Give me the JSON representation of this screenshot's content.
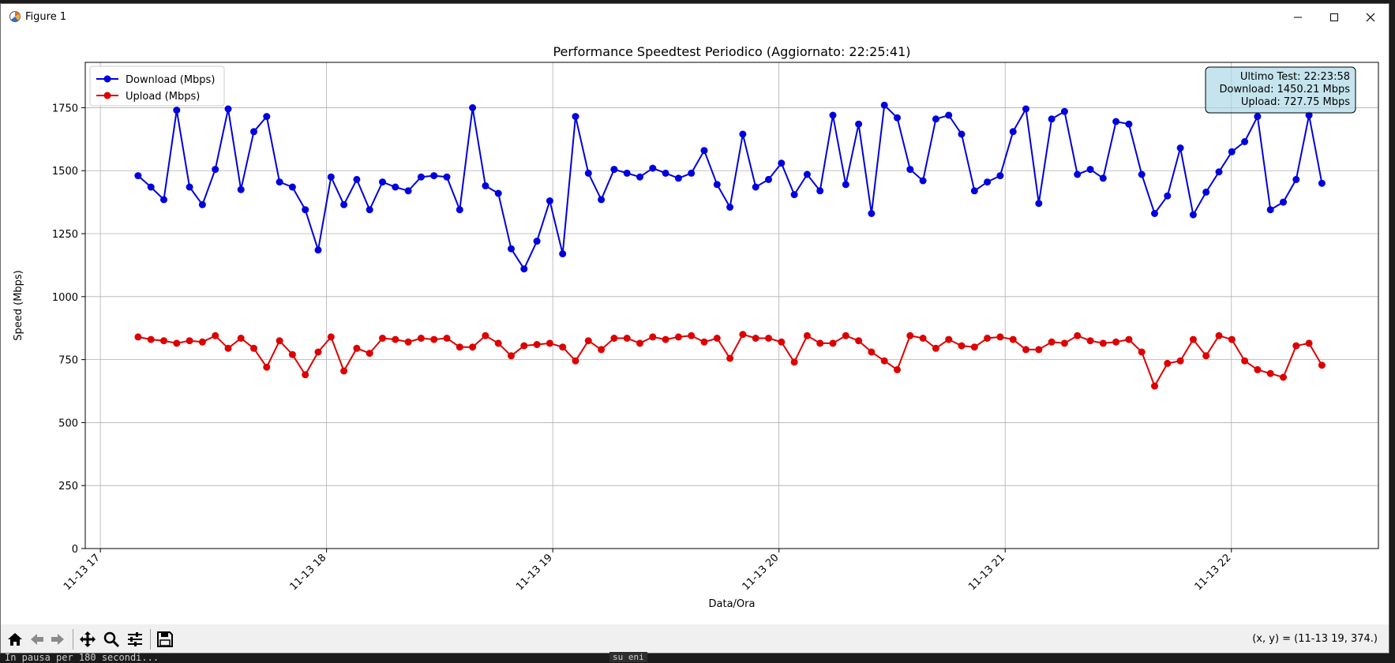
{
  "window": {
    "title": "Figure 1"
  },
  "chart_data": {
    "type": "line",
    "title": "Performance Speedtest Periodico (Aggiornato: 22:25:41)",
    "xlabel": "Data/Ora",
    "ylabel": "Speed (Mbps)",
    "ylim": [
      0,
      1930
    ],
    "yticks": [
      0,
      250,
      500,
      750,
      1000,
      1250,
      1500,
      1750
    ],
    "xlim": [
      "11-13 16:56",
      "11-13 22:39"
    ],
    "xticks": [
      "11-13 17",
      "11-13 18",
      "11-13 19",
      "11-13 20",
      "11-13 21",
      "11-13 22"
    ],
    "grid": true,
    "legend": "top-left",
    "x_start": "11-13 17:10",
    "x_end": "11-13 22:24",
    "series": [
      {
        "name": "Download (Mbps)",
        "color": "#0000dd",
        "values": [
          1480,
          1435,
          1385,
          1740,
          1435,
          1365,
          1505,
          1745,
          1425,
          1655,
          1715,
          1455,
          1435,
          1345,
          1185,
          1475,
          1365,
          1465,
          1345,
          1455,
          1435,
          1420,
          1475,
          1480,
          1475,
          1345,
          1750,
          1440,
          1410,
          1190,
          1110,
          1220,
          1380,
          1170,
          1715,
          1490,
          1385,
          1505,
          1490,
          1475,
          1510,
          1490,
          1470,
          1490,
          1580,
          1445,
          1355,
          1645,
          1435,
          1465,
          1530,
          1405,
          1485,
          1420,
          1720,
          1445,
          1685,
          1330,
          1760,
          1710,
          1505,
          1460,
          1705,
          1720,
          1645,
          1420,
          1455,
          1480,
          1655,
          1745,
          1370,
          1705,
          1735,
          1485,
          1505,
          1470,
          1695,
          1685,
          1485,
          1330,
          1400,
          1590,
          1325,
          1415,
          1495,
          1575,
          1615,
          1715,
          1345,
          1375,
          1465,
          1720,
          1450
        ]
      },
      {
        "name": "Upload (Mbps)",
        "color": "#dd0000",
        "values": [
          840,
          830,
          825,
          815,
          825,
          820,
          845,
          795,
          835,
          795,
          720,
          825,
          770,
          690,
          780,
          840,
          705,
          795,
          775,
          835,
          830,
          820,
          835,
          830,
          835,
          800,
          800,
          845,
          815,
          765,
          805,
          810,
          815,
          800,
          745,
          825,
          790,
          835,
          835,
          815,
          840,
          830,
          840,
          845,
          820,
          835,
          755,
          850,
          835,
          835,
          820,
          740,
          845,
          815,
          815,
          845,
          825,
          780,
          745,
          710,
          845,
          835,
          795,
          830,
          805,
          800,
          835,
          840,
          830,
          790,
          790,
          820,
          815,
          845,
          825,
          815,
          820,
          830,
          780,
          645,
          735,
          745,
          830,
          765,
          845,
          830,
          745,
          710,
          695,
          680,
          805,
          815,
          727.75
        ]
      }
    ],
    "annotation": {
      "lines": [
        "Ultimo Test: 22:23:58",
        "Download: 1450.21 Mbps",
        "Upload: 727.75 Mbps"
      ],
      "position": "top-right",
      "bg": "#add8e6"
    }
  },
  "toolbar": {
    "icons": [
      "home-icon",
      "back-arrow-icon",
      "forward-arrow-icon",
      "pan-icon",
      "zoom-icon",
      "configure-subplots-icon",
      "save-icon"
    ],
    "coords": "(x, y) = (11-13 19, 374.)"
  },
  "console": {
    "left": "In pausa per 180 secondi...",
    "middle": "su eni"
  }
}
